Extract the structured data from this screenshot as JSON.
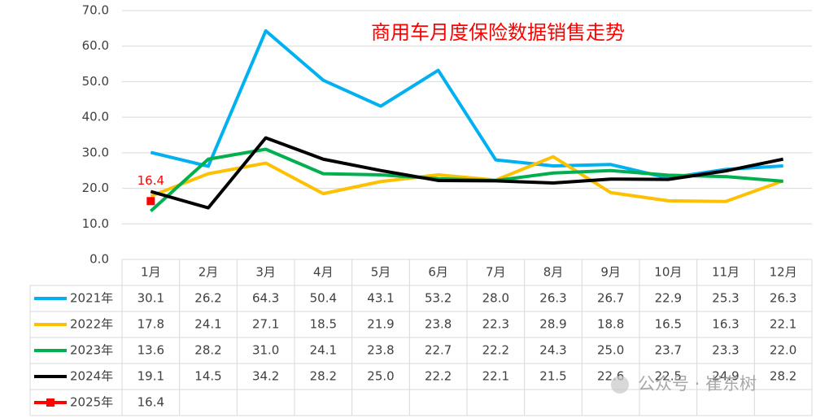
{
  "chart_data": {
    "type": "line",
    "title": "商用车月度保险数据销售走势",
    "categories": [
      "1月",
      "2月",
      "3月",
      "4月",
      "5月",
      "6月",
      "7月",
      "8月",
      "9月",
      "10月",
      "11月",
      "12月"
    ],
    "ylim": [
      0,
      70
    ],
    "yticks": [
      {
        "value": 0,
        "label": "0.0"
      },
      {
        "value": 10,
        "label": "10.0"
      },
      {
        "value": 20,
        "label": "20.0"
      },
      {
        "value": 30,
        "label": "30.0"
      },
      {
        "value": 40,
        "label": "40.0"
      },
      {
        "value": 50,
        "label": "50.0"
      },
      {
        "value": 60,
        "label": "60.0"
      },
      {
        "value": 70,
        "label": "70.0"
      }
    ],
    "grid": true,
    "series": [
      {
        "name": "2021年",
        "color": "#00b0f0",
        "values": [
          30.1,
          26.2,
          64.3,
          50.4,
          43.1,
          53.2,
          28.0,
          26.3,
          26.7,
          22.9,
          25.3,
          26.3
        ],
        "value_labels": [
          "30.1",
          "26.2",
          "64.3",
          "50.4",
          "43.1",
          "53.2",
          "28.0",
          "26.3",
          "26.7",
          "22.9",
          "25.3",
          "26.3"
        ]
      },
      {
        "name": "2022年",
        "color": "#ffc000",
        "values": [
          17.8,
          24.1,
          27.1,
          18.5,
          21.9,
          23.8,
          22.3,
          28.9,
          18.8,
          16.5,
          16.3,
          22.1
        ],
        "value_labels": [
          "17.8",
          "24.1",
          "27.1",
          "18.5",
          "21.9",
          "23.8",
          "22.3",
          "28.9",
          "18.8",
          "16.5",
          "16.3",
          "22.1"
        ]
      },
      {
        "name": "2023年",
        "color": "#00b050",
        "values": [
          13.6,
          28.2,
          31.0,
          24.1,
          23.8,
          22.7,
          22.2,
          24.3,
          25.0,
          23.7,
          23.3,
          22.0
        ],
        "value_labels": [
          "13.6",
          "28.2",
          "31.0",
          "24.1",
          "23.8",
          "22.7",
          "22.2",
          "24.3",
          "25.0",
          "23.7",
          "23.3",
          "22.0"
        ]
      },
      {
        "name": "2024年",
        "color": "#000000",
        "values": [
          19.1,
          14.5,
          34.2,
          28.2,
          25.0,
          22.2,
          22.1,
          21.5,
          22.6,
          22.5,
          24.9,
          28.2
        ],
        "value_labels": [
          "19.1",
          "14.5",
          "34.2",
          "28.2",
          "25.0",
          "22.2",
          "22.1",
          "21.5",
          "22.6",
          "22.5",
          "24.9",
          "28.2"
        ]
      },
      {
        "name": "2025年",
        "color": "#ff0000",
        "values": [
          16.4,
          null,
          null,
          null,
          null,
          null,
          null,
          null,
          null,
          null,
          null,
          null
        ],
        "value_labels": [
          "16.4",
          null,
          null,
          null,
          null,
          null,
          null,
          null,
          null,
          null,
          null,
          null
        ]
      }
    ]
  },
  "watermark": "公众号 · 崔东树"
}
